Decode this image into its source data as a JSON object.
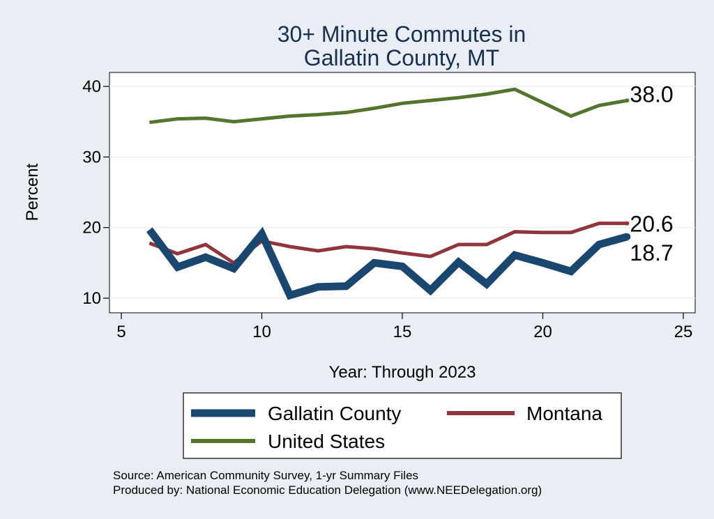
{
  "chart_data": {
    "type": "line",
    "title": [
      "30+ Minute Commutes in",
      "Gallatin County, MT"
    ],
    "xlabel": "Year: Through 2023",
    "ylabel": "Percent",
    "xlim": [
      5,
      25
    ],
    "ylim": [
      9,
      41
    ],
    "xticks": [
      5,
      10,
      15,
      20,
      25
    ],
    "yticks": [
      10,
      20,
      30,
      40
    ],
    "grid": true,
    "legend_position": "bottom",
    "series": [
      {
        "name": "Gallatin County",
        "color": "#1a476f",
        "x": [
          6,
          7,
          8,
          9,
          10,
          11,
          12,
          13,
          14,
          15,
          16,
          17,
          18,
          19,
          20,
          21,
          22,
          23
        ],
        "y": [
          19.7,
          14.4,
          15.8,
          14.2,
          19.1,
          10.4,
          11.6,
          11.7,
          15.0,
          14.5,
          11.1,
          15.1,
          12.0,
          16.1,
          15.0,
          13.8,
          17.6,
          18.7
        ],
        "end_label": "18.7"
      },
      {
        "name": "Montana",
        "color": "#90353b",
        "x": [
          6,
          7,
          8,
          9,
          10,
          11,
          12,
          13,
          14,
          15,
          16,
          17,
          18,
          19,
          20,
          21,
          22,
          23
        ],
        "y": [
          17.8,
          16.3,
          17.6,
          15.0,
          18.1,
          17.3,
          16.7,
          17.3,
          17.0,
          16.4,
          15.9,
          17.6,
          17.6,
          19.4,
          19.3,
          19.3,
          20.6,
          20.6
        ],
        "end_label": "20.6"
      },
      {
        "name": "United States",
        "color": "#55752f",
        "x": [
          6,
          7,
          8,
          9,
          10,
          11,
          12,
          13,
          14,
          15,
          16,
          17,
          18,
          19,
          20,
          21,
          22,
          23
        ],
        "y": [
          34.9,
          35.4,
          35.5,
          35.0,
          35.4,
          35.8,
          36.0,
          36.3,
          36.9,
          37.6,
          38.0,
          38.4,
          38.9,
          39.6,
          37.7,
          35.8,
          37.3,
          38.0
        ],
        "end_label": "38.0"
      }
    ],
    "source_lines": [
      "Source: American Community Survey, 1-yr Summary Files",
      "Produced by: National Economic Education Delegation (www.NEEDelegation.org)"
    ]
  }
}
